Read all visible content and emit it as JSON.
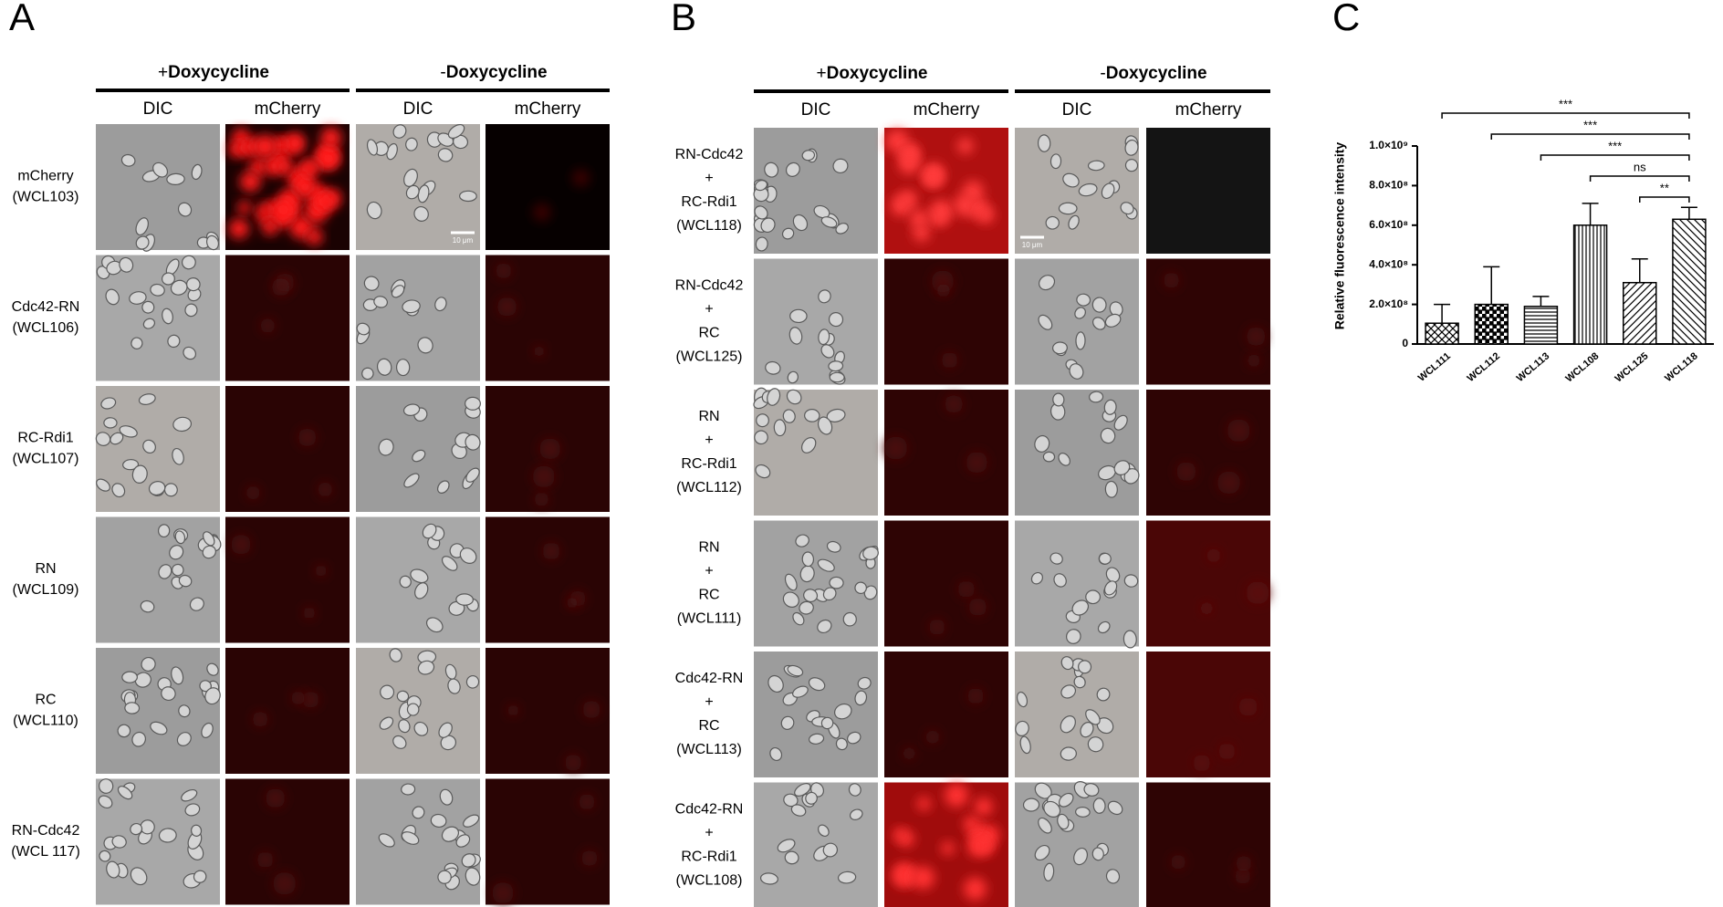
{
  "panel_a": {
    "letter": "A",
    "headers": [
      {
        "sign": "+",
        "label": "Doxycycline"
      },
      {
        "sign": "-",
        "label": "Doxycycline"
      }
    ],
    "columns": [
      "DIC",
      "mCherry",
      "DIC",
      "mCherry"
    ],
    "rows": [
      [
        "mCherry",
        "(WCL103)"
      ],
      [
        "Cdc42-RN",
        "(WCL106)"
      ],
      [
        "RC-Rdi1",
        "(WCL107)"
      ],
      [
        "RN",
        "(WCL109)"
      ],
      [
        "RC",
        "(WCL110)"
      ],
      [
        "RN-Cdc42",
        "(WCL 117)"
      ]
    ],
    "scale_bar": "10 μm"
  },
  "panel_b": {
    "letter": "B",
    "headers": [
      {
        "sign": "+",
        "label": "Doxycycline"
      },
      {
        "sign": "-",
        "label": "Doxycycline"
      }
    ],
    "columns": [
      "DIC",
      "mCherry",
      "DIC",
      "mCherry"
    ],
    "rows": [
      [
        "RN-Cdc42",
        "+",
        "RC-Rdi1",
        "(WCL118)"
      ],
      [
        "RN-Cdc42",
        "+",
        "RC",
        "(WCL125)"
      ],
      [
        "RN",
        "+",
        "RC-Rdi1",
        "(WCL112)"
      ],
      [
        "RN",
        "+",
        "RC",
        "(WCL111)"
      ],
      [
        "Cdc42-RN",
        "+",
        "RC",
        "(WCL113)"
      ],
      [
        "Cdc42-RN",
        "+",
        "RC-Rdi1",
        "(WCL108)"
      ]
    ],
    "scale_bar": "10 μm"
  },
  "chart_data": {
    "type": "bar",
    "letter": "C",
    "ylabel": "Relative fluorescence intensity",
    "categories": [
      "WCL111",
      "WCL112",
      "WCL113",
      "WCL108",
      "WCL125",
      "WCL118"
    ],
    "values": [
      105000000,
      200000000,
      190000000,
      600000000,
      310000000,
      630000000
    ],
    "errors": [
      95000000,
      190000000,
      50000000,
      110000000,
      120000000,
      60000000
    ],
    "patterns": [
      "crosshatch",
      "checker",
      "horizontal",
      "vertical",
      "diagonal-up",
      "diagonal-down"
    ],
    "color": "#000000",
    "ylim": [
      0,
      1000000000
    ],
    "yticks": [
      0,
      {
        "value": 200000000,
        "label": "2.0×10⁸"
      },
      {
        "value": 400000000,
        "label": "4.0×10⁸"
      },
      {
        "value": 600000000,
        "label": "6.0×10⁸"
      },
      {
        "value": 800000000,
        "label": "8.0×10⁸"
      },
      {
        "value": 1000000000,
        "label": "1.0×10⁹"
      }
    ],
    "annotations": [
      {
        "label": "***",
        "from": 0,
        "to": 5
      },
      {
        "label": "***",
        "from": 1,
        "to": 5
      },
      {
        "label": "***",
        "from": 2,
        "to": 5
      },
      {
        "label": "ns",
        "from": 3,
        "to": 5
      },
      {
        "label": "**",
        "from": 4,
        "to": 5
      }
    ]
  }
}
